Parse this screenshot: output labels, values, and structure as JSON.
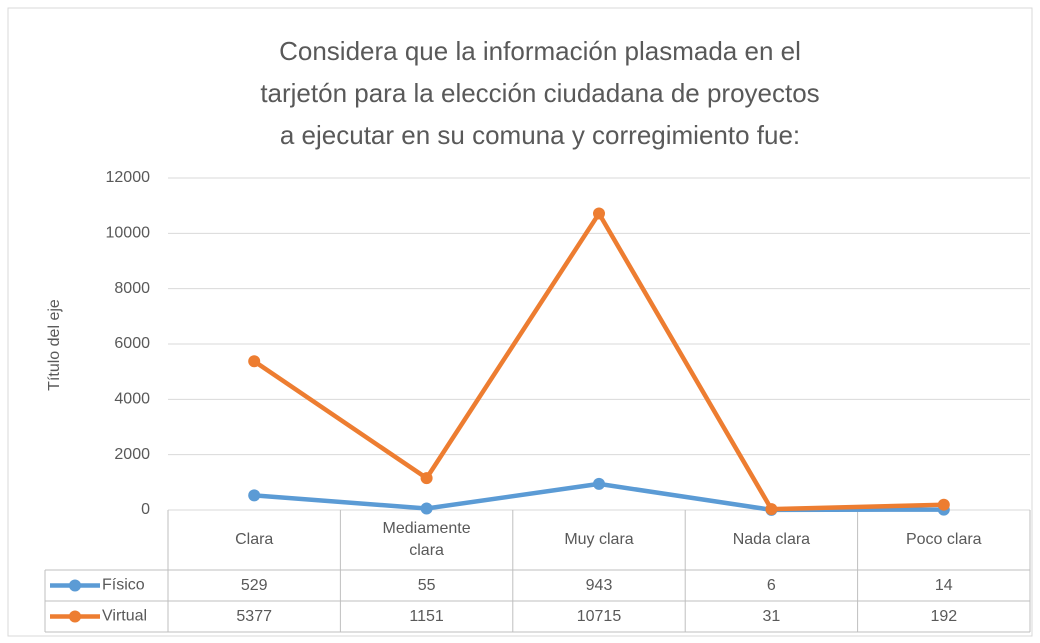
{
  "chart_data": {
    "type": "line",
    "title": "Considera que la información plasmada en el tarjetón para la elección ciudadana de proyectos a ejecutar en su comuna y corregimiento fue:",
    "y_label": "Título del eje",
    "categories": [
      "Clara",
      "Mediamente clara",
      "Muy clara",
      "Nada clara",
      "Poco clara"
    ],
    "series": [
      {
        "name": "Físico",
        "color": "#5b9bd5",
        "values": [
          529,
          55,
          943,
          6,
          14
        ]
      },
      {
        "name": "Virtual",
        "color": "#ed7d31",
        "values": [
          5377,
          1151,
          10715,
          31,
          192
        ]
      }
    ],
    "ylim": [
      0,
      12000
    ],
    "yticks": [
      0,
      2000,
      4000,
      6000,
      8000,
      10000,
      12000
    ],
    "grid": true,
    "legend": "table"
  }
}
